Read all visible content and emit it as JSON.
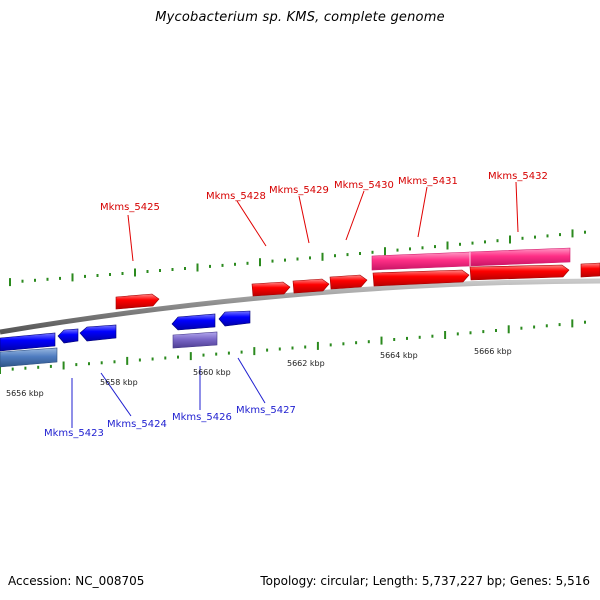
{
  "title": "Mycobacterium sp. KMS, complete genome",
  "footer": {
    "accession": "Accession: NC_008705",
    "summary": "Topology: circular; Length: 5,737,227 bp; Genes: 5,516"
  },
  "colors": {
    "forward_gene": "#ff0000",
    "forward_gene_alt": "#ff2f86",
    "reverse_gene": "#0000ff",
    "reverse_gene_alt": "#4f7cc0",
    "reverse_gene_purple": "#7b68c8",
    "tick": "#2b8a1e",
    "backbone": "#8d8d8d",
    "label_red": "#d60000",
    "label_blue": "#1f1fd0"
  },
  "tick_labels": [
    "5656 kbp",
    "5658 kbp",
    "5660 kbp",
    "5662 kbp",
    "5664 kbp",
    "5666 kbp"
  ],
  "genes_forward": [
    {
      "id": "Mkms_5425"
    },
    {
      "id": "Mkms_5428"
    },
    {
      "id": "Mkms_5429"
    },
    {
      "id": "Mkms_5430"
    },
    {
      "id": "Mkms_5431"
    },
    {
      "id": "Mkms_5432"
    }
  ],
  "genes_reverse": [
    {
      "id": "Mkms_5423"
    },
    {
      "id": "Mkms_5424"
    },
    {
      "id": "Mkms_5426"
    },
    {
      "id": "Mkms_5427"
    }
  ]
}
